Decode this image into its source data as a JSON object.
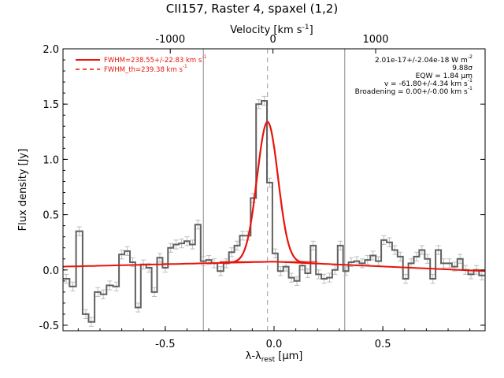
{
  "chart_data": {
    "type": "line",
    "title": "CII157, Raster 4, spaxel (1,2)",
    "xlabel": "λ-λrest [μm]",
    "ylabel": "Flux density [Jy]",
    "top_axis_label": "Velocity [km s⁻¹]",
    "xlim": [
      -0.97,
      0.97
    ],
    "ylim": [
      -0.55,
      2.0
    ],
    "x_ticks": [
      "-0.5",
      "0.0",
      "0.5"
    ],
    "y_ticks": [
      "-0.5",
      "0.0",
      "0.5",
      "1.0",
      "1.5",
      "2.0"
    ],
    "top_ticks": [
      "-1000",
      "0",
      "1000"
    ],
    "legend": {
      "position": "top-left",
      "entries": [
        "FWHM=238.55+/-22.83 km s⁻¹",
        "FWHM_th=239.38 km s⁻¹"
      ]
    },
    "annotations": [
      "2.01e-17+/-2.04e-18 W m⁻²",
      "9.88σ",
      "EQW = 1.84 μm",
      "v = -61.80+/-4.34 km s⁻¹",
      "Broadening = 0.00+/-0.00 km s⁻¹"
    ],
    "colors": {
      "fit": "#e8140c",
      "data": "#606060",
      "errorbars": "#bdbdbd",
      "markers": "#888888"
    },
    "vertical_markers": [
      -0.325,
      0.325
    ],
    "dashed_marker": -0.03,
    "series": [
      {
        "name": "FWHM=238.55+/-22.83 km s⁻¹",
        "kind": "fit",
        "baseline": [
          [
            -0.97,
            0.03
          ],
          [
            0.0,
            0.075
          ],
          [
            0.97,
            -0.01
          ]
        ],
        "gaussian": {
          "center": -0.03,
          "amplitude": 1.265,
          "sigma": 0.048
        }
      },
      {
        "kind": "data-step",
        "x": [
          -0.955,
          -0.925,
          -0.895,
          -0.865,
          -0.84,
          -0.81,
          -0.785,
          -0.755,
          -0.725,
          -0.7,
          -0.675,
          -0.65,
          -0.625,
          -0.6,
          -0.575,
          -0.55,
          -0.525,
          -0.5,
          -0.475,
          -0.45,
          -0.425,
          -0.4,
          -0.375,
          -0.35,
          -0.325,
          -0.3,
          -0.275,
          -0.245,
          -0.22,
          -0.195,
          -0.17,
          -0.145,
          -0.12,
          -0.095,
          -0.07,
          -0.045,
          -0.02,
          0.005,
          0.03,
          0.055,
          0.08,
          0.105,
          0.13,
          0.155,
          0.18,
          0.205,
          0.23,
          0.255,
          0.28,
          0.305,
          0.33,
          0.355,
          0.38,
          0.405,
          0.43,
          0.455,
          0.48,
          0.505,
          0.53,
          0.555,
          0.58,
          0.605,
          0.63,
          0.655,
          0.68,
          0.705,
          0.73,
          0.755,
          0.78,
          0.805,
          0.83,
          0.855,
          0.88,
          0.905,
          0.93,
          0.955
        ],
        "y": [
          -0.08,
          -0.15,
          0.35,
          -0.4,
          -0.47,
          -0.2,
          -0.22,
          -0.14,
          -0.15,
          0.14,
          0.17,
          0.07,
          -0.34,
          0.05,
          0.02,
          -0.2,
          0.11,
          0.02,
          0.2,
          0.23,
          0.24,
          0.26,
          0.23,
          0.41,
          0.08,
          0.09,
          0.06,
          -0.01,
          0.06,
          0.16,
          0.22,
          0.31,
          0.31,
          0.65,
          1.5,
          1.53,
          0.79,
          0.15,
          -0.01,
          0.03,
          -0.07,
          -0.1,
          0.04,
          -0.03,
          0.22,
          -0.04,
          -0.08,
          -0.07,
          0.0,
          0.22,
          -0.01,
          0.07,
          0.08,
          0.06,
          0.09,
          0.13,
          0.08,
          0.27,
          0.25,
          0.18,
          0.12,
          -0.08,
          0.06,
          0.12,
          0.18,
          0.1,
          -0.08,
          0.18,
          0.06,
          0.06,
          0.03,
          0.1,
          0.0,
          -0.04,
          0.0,
          -0.05
        ],
        "error": 0.04
      }
    ]
  }
}
